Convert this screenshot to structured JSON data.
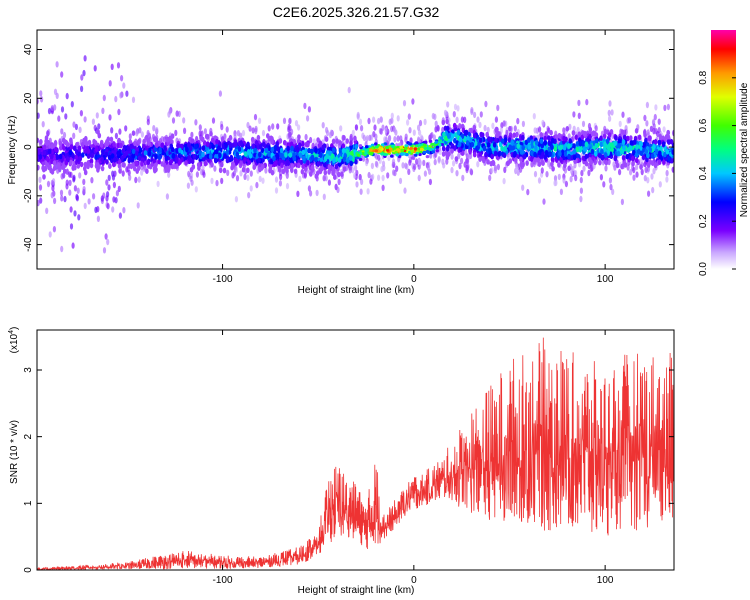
{
  "page_title": "C2E6.2025.326.21.57.G32",
  "chart_data": [
    {
      "type": "heatmap",
      "xlabel": "Height of straight line (km)",
      "ylabel": "Frequency (Hz)",
      "xlim": [
        -197,
        136
      ],
      "ylim": [
        -50,
        48
      ],
      "x_ticks": [
        -100,
        0,
        100
      ],
      "y_ticks": [
        -40,
        -20,
        0,
        20,
        40
      ],
      "colorbar": {
        "label": "Normalized spectral amplitude",
        "range": [
          0.0,
          1.0
        ],
        "ticks": [
          0.0,
          0.2,
          0.4,
          0.6,
          0.8
        ]
      },
      "ridge": {
        "x": [
          -197,
          -150,
          -100,
          -60,
          -40,
          -30,
          -20,
          -10,
          0,
          10,
          15,
          20,
          30,
          40,
          60,
          80,
          100,
          120,
          136
        ],
        "center_freq": [
          -3,
          -3,
          -2,
          -3,
          -4,
          -3,
          -1,
          -1,
          -1,
          0,
          3,
          4,
          2,
          0,
          0,
          -1,
          0,
          -1,
          -2
        ],
        "peak_amplitude": [
          0.25,
          0.35,
          0.45,
          0.45,
          0.5,
          0.6,
          0.95,
          0.97,
          0.95,
          0.7,
          0.55,
          0.55,
          0.5,
          0.45,
          0.5,
          0.5,
          0.55,
          0.5,
          0.45
        ]
      },
      "grid": false
    },
    {
      "type": "line",
      "xlabel": "Height of straight line (km)",
      "ylabel": "SNR (10 * v/v)",
      "yscale_label": "(x10",
      "yscale_exp": "4",
      "yscale_close": ")",
      "xlim": [
        -197,
        136
      ],
      "ylim": [
        0,
        3.6
      ],
      "x_ticks": [
        -100,
        0,
        100
      ],
      "y_ticks": [
        0,
        1,
        2,
        3
      ],
      "color": "#ee3333",
      "envelope": {
        "x": [
          -197,
          -180,
          -150,
          -120,
          -100,
          -80,
          -60,
          -50,
          -45,
          -40,
          -35,
          -30,
          -25,
          -20,
          -15,
          -10,
          -5,
          0,
          5,
          10,
          15,
          20,
          30,
          40,
          50,
          60,
          70,
          80,
          90,
          100,
          110,
          120,
          136
        ],
        "low": [
          0.0,
          0.0,
          0.01,
          0.02,
          0.02,
          0.03,
          0.08,
          0.2,
          0.4,
          0.45,
          0.5,
          0.45,
          0.3,
          0.35,
          0.45,
          0.6,
          0.8,
          0.9,
          0.95,
          1.0,
          1.05,
          1.0,
          0.8,
          0.7,
          0.6,
          0.6,
          0.55,
          0.6,
          0.5,
          0.5,
          0.6,
          0.55,
          0.6
        ],
        "high": [
          0.03,
          0.06,
          0.12,
          0.3,
          0.22,
          0.2,
          0.35,
          0.6,
          1.4,
          1.65,
          1.4,
          1.3,
          1.0,
          1.7,
          0.9,
          1.05,
          1.25,
          1.45,
          1.45,
          1.6,
          1.7,
          1.95,
          2.45,
          2.8,
          3.2,
          3.3,
          3.55,
          3.3,
          3.2,
          3.05,
          3.25,
          3.3,
          3.25
        ]
      },
      "grid": false
    }
  ]
}
